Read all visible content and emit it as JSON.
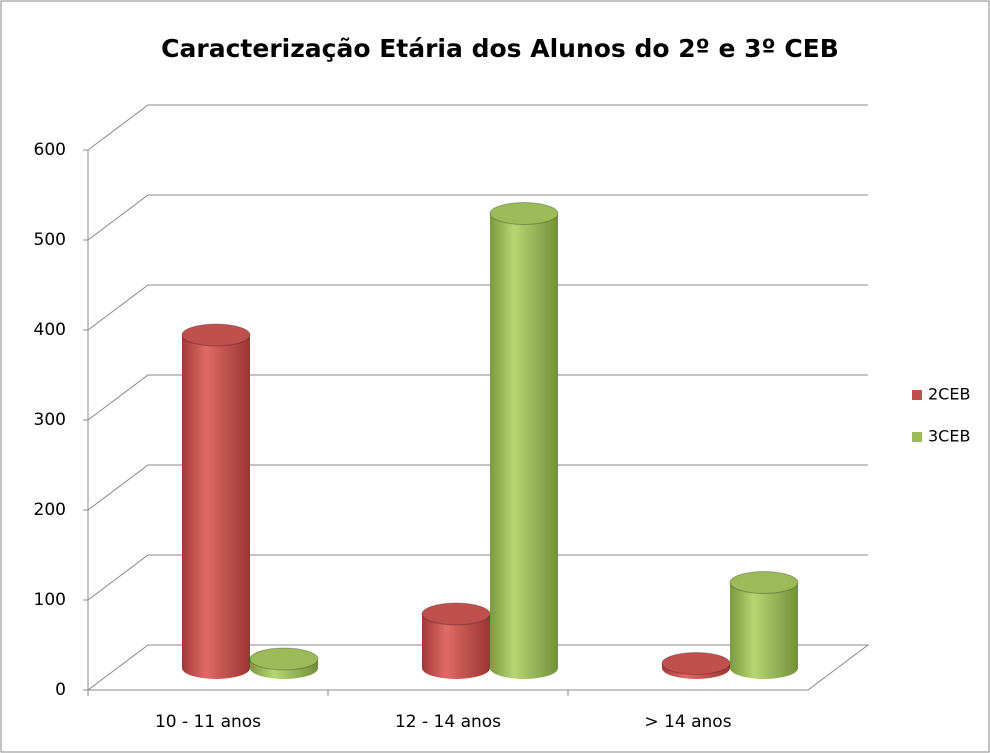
{
  "chart_data": {
    "type": "bar3d",
    "title": "Caracterização Etária dos Alunos do 2º e 3º CEB",
    "categories": [
      "10 - 11 anos",
      "12 - 14 anos",
      "> 14 anos"
    ],
    "series": [
      {
        "name": "2CEB",
        "color": "#c0504d",
        "values": [
          370,
          60,
          5
        ]
      },
      {
        "name": "3CEB",
        "color": "#9bbb59",
        "values": [
          10,
          505,
          95
        ]
      }
    ],
    "ylim": [
      0,
      600
    ],
    "yticks": [
      0,
      100,
      200,
      300,
      400,
      500,
      600
    ],
    "grid": true,
    "legend": "right"
  }
}
